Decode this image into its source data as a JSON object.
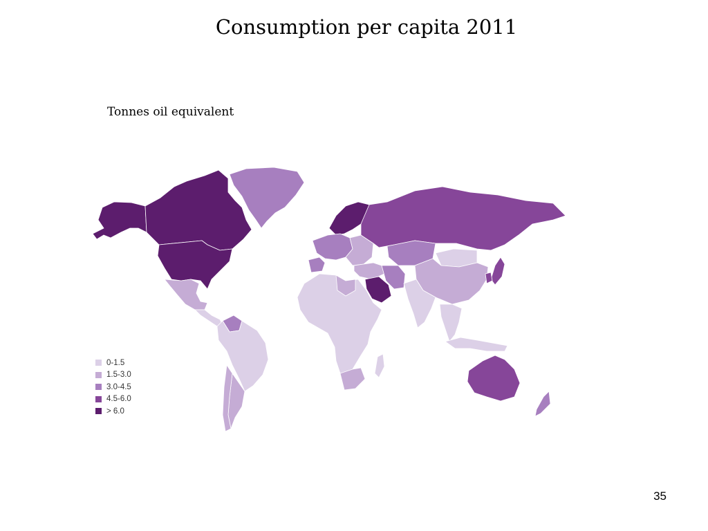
{
  "slide": {
    "title": "Consumption per capita 2011",
    "unit_label": "Tonnes oil equivalent",
    "page_number": "35"
  },
  "legend": {
    "items": [
      {
        "label": "0-1.5",
        "color": "#dcd0e7"
      },
      {
        "label": "1.5-3.0",
        "color": "#c5acd5"
      },
      {
        "label": "3.0-4.5",
        "color": "#a77fbf"
      },
      {
        "label": "4.5-6.0",
        "color": "#864699"
      },
      {
        "label": "> 6.0",
        "color": "#5c1d6d"
      }
    ]
  },
  "regions": [
    {
      "name": "Alaska",
      "color": "#5c1d6d"
    },
    {
      "name": "Canada",
      "color": "#5c1d6d"
    },
    {
      "name": "Greenland",
      "color": "#a77fbf"
    },
    {
      "name": "USA",
      "color": "#5c1d6d"
    },
    {
      "name": "Mexico",
      "color": "#c5acd5"
    },
    {
      "name": "Central America",
      "color": "#dcd0e7"
    },
    {
      "name": "Venezuela",
      "color": "#a77fbf"
    },
    {
      "name": "South America",
      "color": "#dcd0e7"
    },
    {
      "name": "Argentina",
      "color": "#c5acd5"
    },
    {
      "name": "Chile",
      "color": "#c5acd5"
    },
    {
      "name": "Scandinavia",
      "color": "#5c1d6d"
    },
    {
      "name": "Western Europe",
      "color": "#a77fbf"
    },
    {
      "name": "Iberia",
      "color": "#a77fbf"
    },
    {
      "name": "Eastern Europe",
      "color": "#c5acd5"
    },
    {
      "name": "Russia",
      "color": "#864699"
    },
    {
      "name": "Kazakhstan",
      "color": "#a77fbf"
    },
    {
      "name": "Middle East",
      "color": "#c5acd5"
    },
    {
      "name": "Iran",
      "color": "#a77fbf"
    },
    {
      "name": "Saudi Arabia",
      "color": "#5c1d6d"
    },
    {
      "name": "Africa",
      "color": "#dcd0e7"
    },
    {
      "name": "Libya",
      "color": "#c5acd5"
    },
    {
      "name": "South Africa",
      "color": "#c5acd5"
    },
    {
      "name": "Madagascar",
      "color": "#dcd0e7"
    },
    {
      "name": "Mongolia",
      "color": "#dcd0e7"
    },
    {
      "name": "China",
      "color": "#c5acd5"
    },
    {
      "name": "South Asia",
      "color": "#dcd0e7"
    },
    {
      "name": "Southeast Asia",
      "color": "#dcd0e7"
    },
    {
      "name": "Japan",
      "color": "#864699"
    },
    {
      "name": "South Korea",
      "color": "#864699"
    },
    {
      "name": "Indonesia",
      "color": "#dcd0e7"
    },
    {
      "name": "Australia",
      "color": "#864699"
    },
    {
      "name": "New Zealand",
      "color": "#a77fbf"
    }
  ]
}
